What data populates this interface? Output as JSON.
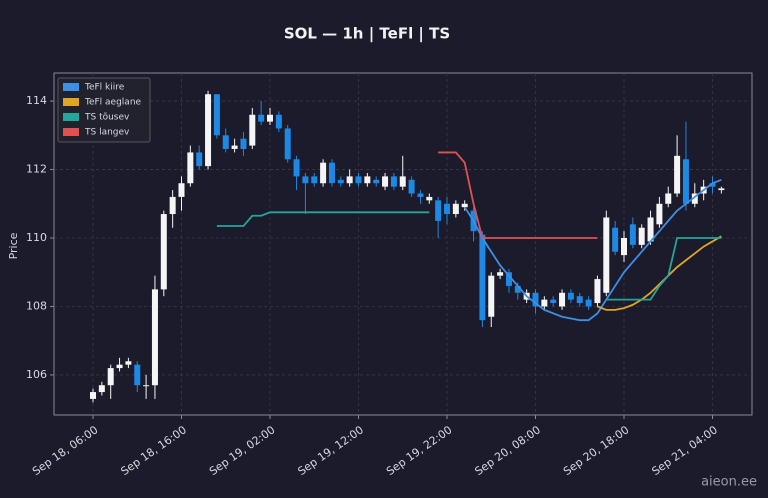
{
  "chart_data": {
    "type": "candlestick",
    "title": "SOL — 1h  |  TeFl  |  TS",
    "y_label": "Price",
    "watermark": "aieon.ee",
    "categories": [
      "Sep 18, 06:00",
      "Sep 18, 07:00",
      "Sep 18, 08:00",
      "Sep 18, 09:00",
      "Sep 18, 10:00",
      "Sep 18, 11:00",
      "Sep 18, 12:00",
      "Sep 18, 13:00",
      "Sep 18, 14:00",
      "Sep 18, 15:00",
      "Sep 18, 16:00",
      "Sep 18, 17:00",
      "Sep 18, 18:00",
      "Sep 18, 19:00",
      "Sep 18, 20:00",
      "Sep 18, 21:00",
      "Sep 18, 22:00",
      "Sep 18, 23:00",
      "Sep 19, 00:00",
      "Sep 19, 01:00",
      "Sep 19, 02:00",
      "Sep 19, 03:00",
      "Sep 19, 04:00",
      "Sep 19, 05:00",
      "Sep 19, 06:00",
      "Sep 19, 07:00",
      "Sep 19, 08:00",
      "Sep 19, 09:00",
      "Sep 19, 10:00",
      "Sep 19, 11:00",
      "Sep 19, 12:00",
      "Sep 19, 13:00",
      "Sep 19, 14:00",
      "Sep 19, 15:00",
      "Sep 19, 16:00",
      "Sep 19, 17:00",
      "Sep 19, 18:00",
      "Sep 19, 19:00",
      "Sep 19, 20:00",
      "Sep 19, 21:00",
      "Sep 19, 22:00",
      "Sep 19, 23:00",
      "Sep 20, 00:00",
      "Sep 20, 01:00",
      "Sep 20, 02:00",
      "Sep 20, 03:00",
      "Sep 20, 04:00",
      "Sep 20, 05:00",
      "Sep 20, 06:00",
      "Sep 20, 07:00",
      "Sep 20, 08:00",
      "Sep 20, 09:00",
      "Sep 20, 10:00",
      "Sep 20, 11:00",
      "Sep 20, 12:00",
      "Sep 20, 13:00",
      "Sep 20, 14:00",
      "Sep 20, 15:00",
      "Sep 20, 16:00",
      "Sep 20, 17:00",
      "Sep 20, 18:00",
      "Sep 20, 19:00",
      "Sep 20, 20:00",
      "Sep 20, 21:00",
      "Sep 20, 22:00",
      "Sep 20, 23:00",
      "Sep 21, 00:00",
      "Sep 21, 01:00",
      "Sep 21, 02:00",
      "Sep 21, 03:00",
      "Sep 21, 04:00",
      "Sep 21, 05:00"
    ],
    "open": [
      105.3,
      105.5,
      105.7,
      106.2,
      106.3,
      106.3,
      105.7,
      105.7,
      108.5,
      110.7,
      111.2,
      111.6,
      112.5,
      112.1,
      114.2,
      113.0,
      112.6,
      112.9,
      112.7,
      113.6,
      113.4,
      113.6,
      113.2,
      112.3,
      111.8,
      111.8,
      111.6,
      112.2,
      111.7,
      111.6,
      111.8,
      111.6,
      111.7,
      111.5,
      111.8,
      111.5,
      111.7,
      111.3,
      111.1,
      111.1,
      111.0,
      110.7,
      110.9,
      110.8,
      110.1,
      107.7,
      108.9,
      109.0,
      108.6,
      108.2,
      108.4,
      108.0,
      108.2,
      108.0,
      108.4,
      108.3,
      108.2,
      108.1,
      108.4,
      110.3,
      109.5,
      110.4,
      109.8,
      109.9,
      110.4,
      111.0,
      111.3,
      112.3,
      111.0,
      111.3,
      111.6,
      111.4
    ],
    "high": [
      105.6,
      105.8,
      106.3,
      106.5,
      106.5,
      106.4,
      106.0,
      108.9,
      110.8,
      111.4,
      111.8,
      112.7,
      112.7,
      114.3,
      114.2,
      113.2,
      112.9,
      113.1,
      113.8,
      114.0,
      113.8,
      113.7,
      113.3,
      112.4,
      111.9,
      111.9,
      112.3,
      112.3,
      111.8,
      112.0,
      111.9,
      111.9,
      111.8,
      111.9,
      111.9,
      112.4,
      111.8,
      111.4,
      111.3,
      111.2,
      111.2,
      111.1,
      111.1,
      110.9,
      110.2,
      109.0,
      109.1,
      109.1,
      108.7,
      108.5,
      108.5,
      108.3,
      108.3,
      108.5,
      108.5,
      108.4,
      108.3,
      108.9,
      110.8,
      110.5,
      110.2,
      110.6,
      110.4,
      110.8,
      111.2,
      111.5,
      113.0,
      113.4,
      111.6,
      111.7,
      111.8,
      111.5
    ],
    "low": [
      105.2,
      105.4,
      105.3,
      106.1,
      106.2,
      105.5,
      105.3,
      105.3,
      108.3,
      110.3,
      110.8,
      111.5,
      112.0,
      112.0,
      112.9,
      112.5,
      112.5,
      112.4,
      112.6,
      113.3,
      113.3,
      113.1,
      112.2,
      111.4,
      110.7,
      111.5,
      111.5,
      111.5,
      111.5,
      111.5,
      111.5,
      111.5,
      111.5,
      111.4,
      111.4,
      111.4,
      111.2,
      111.0,
      111.0,
      110.0,
      110.4,
      110.6,
      110.8,
      109.9,
      107.4,
      107.4,
      108.8,
      108.4,
      108.2,
      108.1,
      107.8,
      107.9,
      108.0,
      107.9,
      108.1,
      108.0,
      107.9,
      108.0,
      108.3,
      109.5,
      109.3,
      109.7,
      109.7,
      109.8,
      110.3,
      110.9,
      111.2,
      110.8,
      110.9,
      111.1,
      111.3,
      111.3
    ],
    "close": [
      105.5,
      105.7,
      106.2,
      106.3,
      106.4,
      105.7,
      105.7,
      108.5,
      110.7,
      111.2,
      111.6,
      112.5,
      112.1,
      114.2,
      113.0,
      112.6,
      112.7,
      112.6,
      113.6,
      113.4,
      113.6,
      113.2,
      112.3,
      111.8,
      111.6,
      111.6,
      112.2,
      111.6,
      111.6,
      111.8,
      111.6,
      111.8,
      111.6,
      111.8,
      111.5,
      111.8,
      111.3,
      111.2,
      111.2,
      110.5,
      110.7,
      111.0,
      111.0,
      110.2,
      107.6,
      108.9,
      109.0,
      108.6,
      108.4,
      108.4,
      108.0,
      108.2,
      108.1,
      108.4,
      108.2,
      108.1,
      108.0,
      108.8,
      110.6,
      109.6,
      110.0,
      109.8,
      110.3,
      110.6,
      111.0,
      111.3,
      112.4,
      111.0,
      111.3,
      111.5,
      111.5,
      111.45
    ],
    "up_color": "#f5f5f5",
    "down_color": "#1e88e5",
    "series": [
      {
        "name": "TeFl kiire",
        "color": "#3d8fe8",
        "values": [
          null,
          null,
          null,
          null,
          null,
          null,
          null,
          null,
          null,
          null,
          null,
          null,
          null,
          null,
          null,
          null,
          null,
          null,
          null,
          null,
          null,
          null,
          null,
          null,
          null,
          null,
          null,
          null,
          null,
          null,
          null,
          null,
          null,
          null,
          null,
          null,
          null,
          null,
          null,
          null,
          null,
          null,
          110.9,
          110.5,
          110.0,
          109.6,
          109.2,
          108.9,
          108.6,
          108.3,
          108.1,
          107.9,
          107.8,
          107.7,
          107.65,
          107.6,
          107.6,
          107.8,
          108.2,
          108.6,
          109.0,
          109.3,
          109.6,
          109.9,
          110.2,
          110.5,
          110.8,
          111.0,
          111.2,
          111.4,
          111.6,
          111.7
        ]
      },
      {
        "name": "TeFl aeglane",
        "color": "#e0a526",
        "values": [
          null,
          null,
          null,
          null,
          null,
          null,
          null,
          null,
          null,
          null,
          null,
          null,
          null,
          null,
          null,
          null,
          null,
          null,
          null,
          null,
          null,
          null,
          null,
          null,
          null,
          null,
          null,
          null,
          null,
          null,
          null,
          null,
          null,
          null,
          null,
          null,
          null,
          null,
          null,
          null,
          null,
          null,
          null,
          null,
          null,
          null,
          null,
          null,
          null,
          null,
          null,
          null,
          null,
          null,
          null,
          null,
          null,
          108.0,
          107.9,
          107.9,
          107.95,
          108.05,
          108.2,
          108.4,
          108.65,
          108.9,
          109.15,
          109.35,
          109.55,
          109.75,
          109.9,
          110.05
        ]
      },
      {
        "name": "TS tõusev",
        "color": "#26a69a",
        "values": [
          null,
          null,
          null,
          null,
          null,
          null,
          null,
          null,
          null,
          null,
          null,
          null,
          null,
          null,
          110.35,
          110.35,
          110.35,
          110.35,
          110.65,
          110.65,
          110.75,
          110.75,
          110.75,
          110.75,
          110.75,
          110.75,
          110.75,
          110.75,
          110.75,
          110.75,
          110.75,
          110.75,
          110.75,
          110.75,
          110.75,
          110.75,
          110.75,
          110.75,
          110.75,
          null,
          null,
          null,
          null,
          null,
          null,
          null,
          null,
          null,
          null,
          null,
          null,
          null,
          null,
          null,
          null,
          null,
          null,
          null,
          108.2,
          108.2,
          108.2,
          108.2,
          108.2,
          108.2,
          108.6,
          108.9,
          110.0,
          110.0,
          110.0,
          110.0,
          110.0,
          110.0
        ]
      },
      {
        "name": "TS langev",
        "color": "#e05252",
        "values": [
          null,
          null,
          null,
          null,
          null,
          null,
          null,
          null,
          null,
          null,
          null,
          null,
          null,
          null,
          null,
          null,
          null,
          null,
          null,
          null,
          null,
          null,
          null,
          null,
          null,
          null,
          null,
          null,
          null,
          null,
          null,
          null,
          null,
          null,
          null,
          null,
          null,
          null,
          null,
          112.5,
          112.5,
          112.5,
          112.2,
          111.0,
          110.0,
          110.0,
          110.0,
          110.0,
          110.0,
          110.0,
          110.0,
          110.0,
          110.0,
          110.0,
          110.0,
          110.0,
          110.0,
          110.0,
          null,
          null,
          null,
          null,
          null,
          null,
          null,
          null,
          null,
          null,
          null,
          null,
          null,
          null
        ]
      }
    ],
    "ylim": [
      104.83,
      114.82
    ],
    "yticks": [
      106,
      108,
      110,
      112,
      114
    ],
    "xticks": [
      {
        "value": "Sep 18, 06:00",
        "label": "Sep 18, 06:00"
      },
      {
        "value": "Sep 18, 16:00",
        "label": "Sep 18, 16:00"
      },
      {
        "value": "Sep 19, 02:00",
        "label": "Sep 19, 02:00"
      },
      {
        "value": "Sep 19, 12:00",
        "label": "Sep 19, 12:00"
      },
      {
        "value": "Sep 19, 22:00",
        "label": "Sep 19, 22:00"
      },
      {
        "value": "Sep 20, 08:00",
        "label": "Sep 20, 08:00"
      },
      {
        "value": "Sep 20, 18:00",
        "label": "Sep 20, 18:00"
      },
      {
        "value": "Sep 21, 04:00",
        "label": "Sep 21, 04:00"
      }
    ],
    "grid": true,
    "legend": "upper-left"
  }
}
